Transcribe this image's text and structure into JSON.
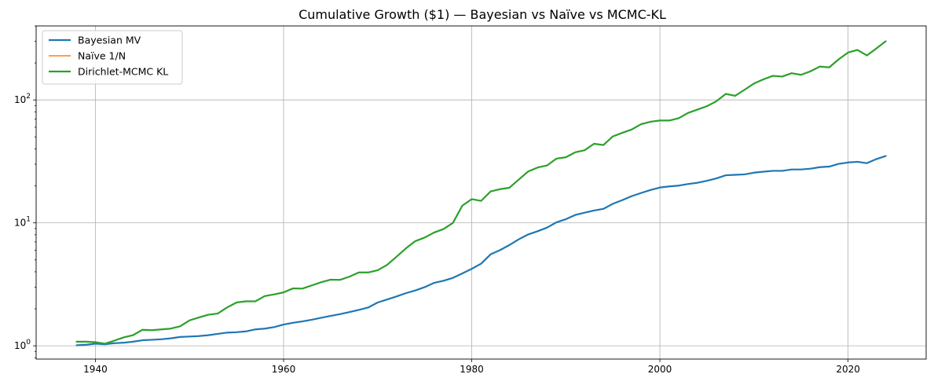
{
  "chart_data": {
    "type": "line",
    "title": "Cumulative Growth ($1) — Bayesian vs Naïve vs MCMC-KL",
    "xlabel": "",
    "ylabel": "",
    "x_scale": "linear",
    "y_scale": "log",
    "xlim": [
      1933.7,
      2028.3
    ],
    "ylim": [
      0.78,
      400
    ],
    "x_ticks": [
      1940,
      1960,
      1980,
      2000,
      2020
    ],
    "y_ticks": [
      1,
      10,
      100
    ],
    "grid": true,
    "legend_position": "top-left",
    "x": [
      1938,
      1939,
      1940,
      1941,
      1942,
      1943,
      1944,
      1945,
      1946,
      1947,
      1948,
      1949,
      1950,
      1951,
      1952,
      1953,
      1954,
      1955,
      1956,
      1957,
      1958,
      1959,
      1960,
      1961,
      1962,
      1963,
      1964,
      1965,
      1966,
      1967,
      1968,
      1969,
      1970,
      1971,
      1972,
      1973,
      1974,
      1975,
      1976,
      1977,
      1978,
      1979,
      1980,
      1981,
      1982,
      1983,
      1984,
      1985,
      1986,
      1987,
      1988,
      1989,
      1990,
      1991,
      1992,
      1993,
      1994,
      1995,
      1996,
      1997,
      1998,
      1999,
      2000,
      2001,
      2002,
      2003,
      2004,
      2005,
      2006,
      2007,
      2008,
      2009,
      2010,
      2011,
      2012,
      2013,
      2014,
      2015,
      2016,
      2017,
      2018,
      2019,
      2020,
      2021,
      2022,
      2023,
      2024
    ],
    "series": [
      {
        "name": "Bayesian MV",
        "color": "#1f77b4",
        "values": [
          1.01,
          1.02,
          1.04,
          1.03,
          1.05,
          1.06,
          1.08,
          1.11,
          1.12,
          1.13,
          1.15,
          1.18,
          1.19,
          1.2,
          1.22,
          1.25,
          1.28,
          1.29,
          1.31,
          1.36,
          1.38,
          1.42,
          1.49,
          1.54,
          1.58,
          1.63,
          1.69,
          1.75,
          1.81,
          1.88,
          1.96,
          2.05,
          2.25,
          2.38,
          2.52,
          2.68,
          2.82,
          3.0,
          3.25,
          3.38,
          3.57,
          3.88,
          4.23,
          4.66,
          5.54,
          6.0,
          6.6,
          7.35,
          8.05,
          8.55,
          9.15,
          10.1,
          10.7,
          11.6,
          12.1,
          12.6,
          13.0,
          14.3,
          15.3,
          16.5,
          17.5,
          18.5,
          19.4,
          19.8,
          20.1,
          20.7,
          21.2,
          22.0,
          23.0,
          24.4,
          24.6,
          24.8,
          25.6,
          26.1,
          26.5,
          26.5,
          27.2,
          27.2,
          27.6,
          28.4,
          28.7,
          30.2,
          31.0,
          31.4,
          30.6,
          33.0,
          35.0
        ]
      },
      {
        "name": "Naïve 1/N",
        "color": "#ff7f0e",
        "values": [
          1.08,
          1.08,
          1.07,
          1.04,
          1.1,
          1.17,
          1.22,
          1.35,
          1.34,
          1.36,
          1.38,
          1.44,
          1.61,
          1.7,
          1.79,
          1.83,
          2.05,
          2.25,
          2.3,
          2.3,
          2.54,
          2.62,
          2.72,
          2.93,
          2.92,
          3.1,
          3.29,
          3.45,
          3.44,
          3.65,
          3.95,
          3.95,
          4.12,
          4.55,
          5.3,
          6.2,
          7.1,
          7.6,
          8.35,
          8.9,
          10.0,
          13.8,
          15.6,
          15.1,
          18.0,
          18.8,
          19.3,
          22.5,
          26.2,
          28.2,
          29.3,
          33.3,
          34.2,
          37.5,
          39.0,
          44.0,
          43.0,
          50.5,
          54.0,
          57.5,
          63.5,
          66.5,
          68.0,
          68.0,
          71.0,
          78.5,
          83.5,
          89.0,
          97.5,
          112.0,
          108.0,
          121.0,
          136.0,
          147.0,
          157.0,
          155.0,
          165.0,
          160.0,
          171.0,
          187.0,
          184.0,
          214.0,
          243.0,
          255.0,
          230.0,
          262.0,
          300.0
        ]
      },
      {
        "name": "Dirichlet-MCMC KL",
        "color": "#2ca02c",
        "values": [
          1.08,
          1.08,
          1.07,
          1.04,
          1.1,
          1.17,
          1.22,
          1.35,
          1.34,
          1.36,
          1.38,
          1.44,
          1.61,
          1.7,
          1.79,
          1.83,
          2.05,
          2.25,
          2.3,
          2.3,
          2.54,
          2.62,
          2.72,
          2.93,
          2.92,
          3.1,
          3.29,
          3.45,
          3.44,
          3.65,
          3.95,
          3.95,
          4.12,
          4.55,
          5.3,
          6.2,
          7.1,
          7.6,
          8.35,
          8.9,
          10.0,
          13.8,
          15.6,
          15.1,
          18.0,
          18.8,
          19.3,
          22.5,
          26.2,
          28.2,
          29.3,
          33.3,
          34.2,
          37.5,
          39.0,
          44.0,
          43.0,
          50.5,
          54.0,
          57.5,
          63.5,
          66.5,
          68.0,
          68.0,
          71.0,
          78.5,
          83.5,
          89.0,
          97.5,
          112.0,
          108.0,
          121.0,
          136.0,
          147.0,
          157.0,
          155.0,
          165.0,
          160.0,
          171.0,
          187.0,
          184.0,
          214.0,
          243.0,
          255.0,
          230.0,
          262.0,
          300.0
        ]
      }
    ]
  }
}
